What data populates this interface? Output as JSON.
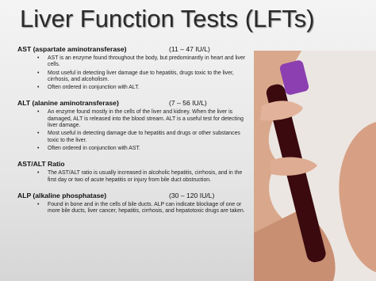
{
  "title": "Liver Function Tests (LFTs)",
  "sections": [
    {
      "heading": "AST  (aspartate aminotransferase)",
      "range": "(11 – 47 IU/L)",
      "bullets": [
        "AST is an enzyme found throughout the body, but predominantly in heart and liver cells.",
        "Most useful in detecting liver damage due to hepatitis, drugs toxic to the liver, cirrhosis, and alcoholism.",
        "Often ordered in conjunction with ALT."
      ]
    },
    {
      "heading": "ALT  (alanine aminotransferase)",
      "range": "(7 – 56 IU/L)",
      "bullets": [
        "An enzyme found mostly in the cells of the liver and kidney.  When the liver is damaged, ALT is released into the blood stream.  ALT is a useful test for detecting liver damage.",
        "Most useful in detecting damage due to hepatitis and drugs or other substances toxic to the liver.",
        "Often ordered in conjunction with AST."
      ]
    },
    {
      "heading": "AST/ALT Ratio",
      "bullets": [
        "The AST/ALT ratio is usually increased in alcoholic hepatitis, cirrhosis, and in the first day or two of acute hepatitis or injury from bile duct obstruction."
      ]
    },
    {
      "heading": "ALP  (alkaline phosphatase)",
      "range": "(30 – 120 IU/L)",
      "bullets": [
        "Found in bone and in the cells of bile ducts. ALP can indicate blockage of one or more bile ducts, liver cancer, hepatitis, cirrhosis, and hepatotoxic drugs are taken."
      ]
    }
  ]
}
